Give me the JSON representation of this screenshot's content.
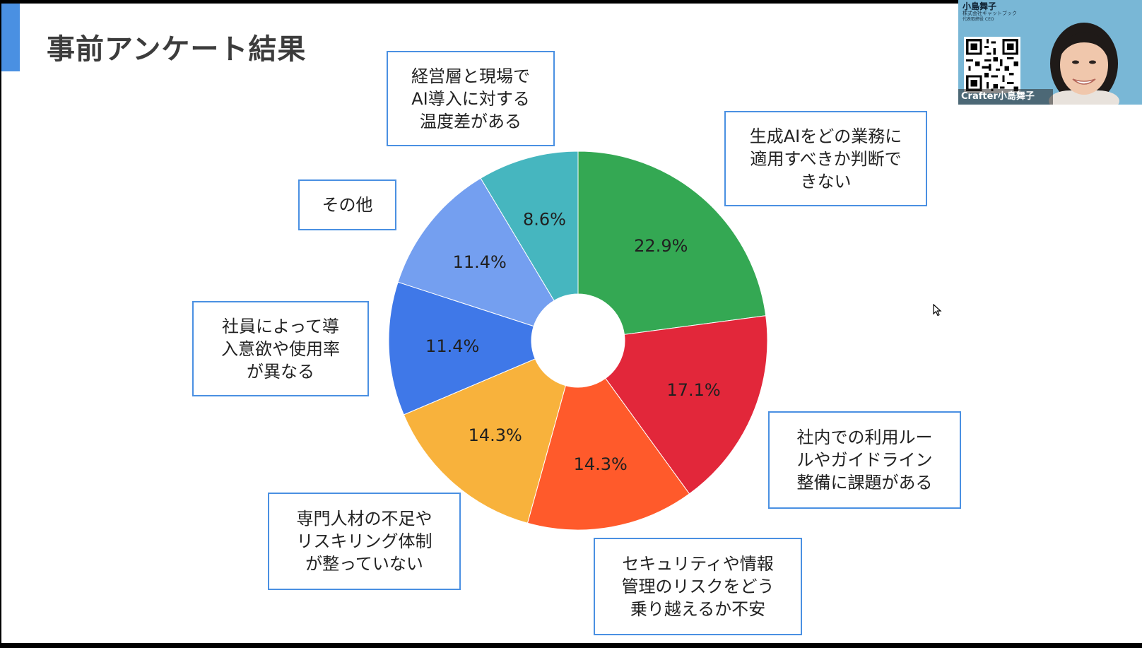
{
  "slide": {
    "title": "事前アンケート結果"
  },
  "chart_data": {
    "type": "pie",
    "title": "事前アンケート結果",
    "series": [
      {
        "slices": [
          {
            "category": "生成AIをどの業務に適用すべきか判断できない",
            "value": 22.9,
            "label": "22.9%",
            "color": "#34a853"
          },
          {
            "category": "社内での利用ルールやガイドライン整備に課題がある",
            "value": 17.1,
            "label": "17.1%",
            "color": "#e2273a"
          },
          {
            "category": "セキュリティや情報管理のリスクをどう乗り越えるか不安",
            "value": 14.3,
            "label": "14.3%",
            "color": "#ff5a2b"
          },
          {
            "category": "専門人材の不足やリスキリング体制が整っていない",
            "value": 14.3,
            "label": "14.3%",
            "color": "#f8b23c"
          },
          {
            "category": "社員によって導入意欲や使用率が異なる",
            "value": 11.4,
            "label": "11.4%",
            "color": "#3f78e8"
          },
          {
            "category": "その他",
            "value": 11.4,
            "label": "11.4%",
            "color": "#749ff0"
          },
          {
            "category": "経営層と現場でAI導入に対する温度差がある",
            "value": 8.6,
            "label": "8.6%",
            "color": "#46b6bf"
          }
        ]
      }
    ],
    "callouts": [
      "生成AIをどの業務に\n適用すべきか判断で\nきない",
      "社内での利用ルー\nルやガイドライン\n整備に課題がある",
      "セキュリティや情報\n管理のリスクをどう\n乗り越えるか不安",
      "専門人材の不足や\nリスキリング体制\nが整っていない",
      "社員によって導\n入意欲や使用率\nが異なる",
      "その他",
      "経営層と現場で\nAI導入に対する\n温度差がある"
    ],
    "donut": true,
    "legend": "callout boxes"
  },
  "video_tile": {
    "name_top": "小島舞子",
    "company": "株式会社キャットブック",
    "role": "代表取締役 CEO",
    "participant_label": "Crafter小島舞子",
    "background": "#79b7d6"
  },
  "icons": [
    "qr-code-icon",
    "cursor-icon",
    "avatar"
  ]
}
